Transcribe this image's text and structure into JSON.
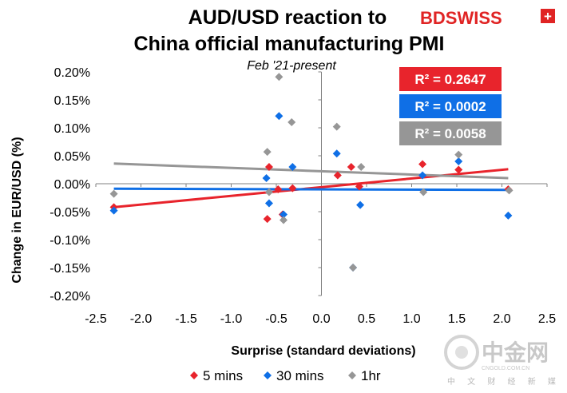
{
  "brand": {
    "name": "BDSWISS",
    "plus_symbol": "+"
  },
  "watermark": {
    "cn_name": "中金网",
    "domain": "CNGOLD.COM.CN",
    "cn_slogan": "中 文 财 经 新 媒 体"
  },
  "chart_data": {
    "type": "scatter",
    "title_line1": "AUD/USD reaction to",
    "title_line2": "China official manufacturing PMI",
    "subtitle": "Feb '21-present",
    "xlabel": "Surprise (standard deviations)",
    "ylabel": "Change in EUR/USD  (%)",
    "xlim": [
      -2.5,
      2.5
    ],
    "ylim": [
      -0.2,
      0.2
    ],
    "x_ticks": [
      "-2.5",
      "-2.0",
      "-1.5",
      "-1.0",
      "-0.5",
      "0.0",
      "0.5",
      "1.0",
      "1.5",
      "2.0",
      "2.5"
    ],
    "y_ticks": [
      "0.20%",
      "0.15%",
      "0.10%",
      "0.05%",
      "0.00%",
      "-0.05%",
      "-0.10%",
      "-0.15%",
      "-0.20%"
    ],
    "legend_placement": "bottom",
    "series": [
      {
        "name": "5 mins",
        "color": "#e8242c",
        "r2_label": "R² = 0.2647",
        "trend": [
          [
            -2.3,
            -0.042
          ],
          [
            2.07,
            0.026
          ]
        ],
        "points": [
          [
            -2.3,
            -0.042
          ],
          [
            -0.6,
            -0.063
          ],
          [
            -0.58,
            0.03
          ],
          [
            -0.48,
            -0.01
          ],
          [
            -0.43,
            -0.055
          ],
          [
            -0.32,
            -0.008
          ],
          [
            0.18,
            0.015
          ],
          [
            0.33,
            0.03
          ],
          [
            0.42,
            -0.005
          ],
          [
            1.12,
            0.035
          ],
          [
            1.52,
            0.025
          ],
          [
            2.07,
            -0.01
          ]
        ]
      },
      {
        "name": "30 mins",
        "color": "#0f6fe6",
        "r2_label": "R² = 0.0002",
        "trend": [
          [
            -2.3,
            -0.009
          ],
          [
            2.07,
            -0.011
          ]
        ],
        "points": [
          [
            -2.3,
            -0.048
          ],
          [
            -0.61,
            0.01
          ],
          [
            -0.58,
            -0.035
          ],
          [
            -0.47,
            0.121
          ],
          [
            -0.42,
            -0.055
          ],
          [
            -0.32,
            0.03
          ],
          [
            0.17,
            0.054
          ],
          [
            0.35,
            -0.15
          ],
          [
            0.43,
            -0.038
          ],
          [
            1.12,
            0.015
          ],
          [
            1.52,
            0.04
          ],
          [
            2.07,
            -0.057
          ]
        ]
      },
      {
        "name": "1hr",
        "color": "#969696",
        "r2_label": "R² = 0.0058",
        "trend": [
          [
            -2.3,
            0.036
          ],
          [
            2.07,
            0.01
          ]
        ],
        "points": [
          [
            -2.3,
            -0.018
          ],
          [
            -0.6,
            0.057
          ],
          [
            -0.58,
            -0.015
          ],
          [
            -0.47,
            0.191
          ],
          [
            -0.42,
            -0.065
          ],
          [
            -0.33,
            0.11
          ],
          [
            0.17,
            0.102
          ],
          [
            0.35,
            -0.15
          ],
          [
            0.44,
            0.03
          ],
          [
            1.13,
            -0.015
          ],
          [
            1.52,
            0.052
          ],
          [
            2.08,
            -0.012
          ]
        ]
      }
    ]
  }
}
